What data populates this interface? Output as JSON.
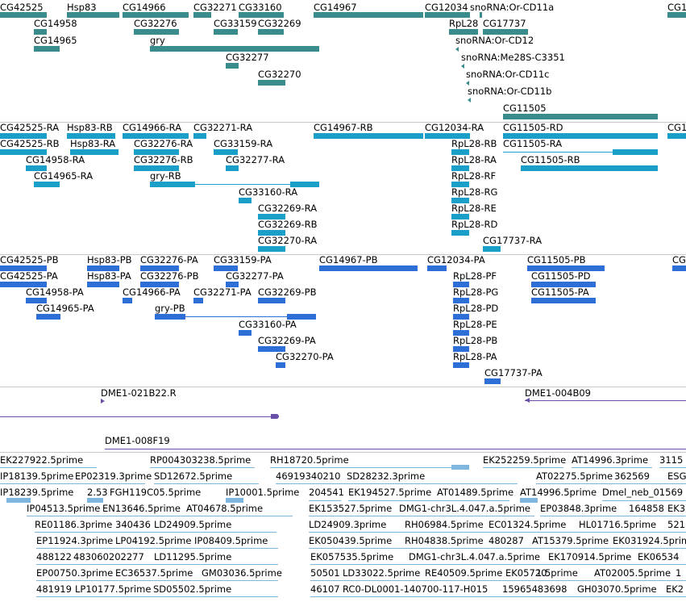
{
  "colors": {
    "gene": "#3a8c8c",
    "transcript": "#1aa0c8",
    "protein": "#2d6fd6",
    "clone": "#6a4fa8",
    "est": "#7fb6e0",
    "separator": "#c8c8c8"
  },
  "tracks": {
    "genes": {
      "labels": [
        "CG42525",
        "Hsp83",
        "CG14966",
        "CG32271",
        "CG33160",
        "CG14967",
        "CG12034",
        "snoRNA:Or-CD11a",
        "CG14958",
        "CG32276",
        "CG33159",
        "CG32269",
        "RpL28",
        "CG17737",
        "CG14965",
        "gry",
        "snoRNA:Or-CD12",
        "CG32277",
        "snoRNA:Me28S-C3351",
        "CG32270",
        "snoRNA:Or-CD11c",
        "snoRNA:Or-CD11b",
        "CG11505"
      ]
    },
    "transcripts": {
      "labels": [
        "CG42525-RA",
        "Hsp83-RB",
        "CG14966-RA",
        "CG32271-RA",
        "CG14967-RB",
        "CG12034-RA",
        "CG11505-RD",
        "CG42525-RB",
        "Hsp83-RA",
        "CG32276-RA",
        "CG33159-RA",
        "RpL28-RB",
        "CG11505-RA",
        "CG14958-RA",
        "CG32276-RB",
        "CG32277-RA",
        "RpL28-RA",
        "CG11505-RB",
        "CG14965-RA",
        "gry-RB",
        "RpL28-RF",
        "CG33160-RA",
        "RpL28-RG",
        "CG32269-RA",
        "RpL28-RE",
        "CG32269-RB",
        "RpL28-RD",
        "CG32270-RA",
        "CG17737-RA"
      ]
    },
    "proteins": {
      "labels": [
        "CG42525-PB",
        "Hsp83-PB",
        "CG32276-PA",
        "CG33159-PA",
        "CG14967-PB",
        "CG12034-PA",
        "CG11505-PB",
        "CG42525-PA",
        "Hsp83-PA",
        "CG32276-PB",
        "CG32277-PA",
        "RpL28-PF",
        "CG11505-PD",
        "CG14958-PA",
        "CG14966-PA",
        "CG32271-PA",
        "CG32269-PB",
        "RpL28-PG",
        "CG11505-PA",
        "CG14965-PA",
        "gry-PB",
        "RpL28-PD",
        "CG33160-PA",
        "RpL28-PE",
        "CG32269-PA",
        "RpL28-PB",
        "CG32270-PA",
        "RpL28-PA",
        "CG17737-PA"
      ]
    },
    "clones": {
      "labels": [
        "DME1-021B22.R",
        "DME1-004B09",
        "DME1-008F19"
      ]
    },
    "ests": {
      "labels": [
        "EK227922.5prime",
        "RP004303238.5prime",
        "RH18720.5prime",
        "EK252259.5prime",
        "AT14996.3prime",
        "3115",
        "IP18139.5prime",
        "EP02319.3prime",
        "SD12672.5prime",
        "46919340210",
        "SD28232.3prime",
        "AT02275.5prime",
        "362569",
        "ESG",
        "IP18239.5prime",
        "2.53",
        "FGH119C05.5prime",
        "IP10001.5prime",
        "204541",
        "EK194527.5prime",
        "AT01489.5prime",
        "AT14996.5prime",
        "Dmel_neb_01569",
        "IP04513.5prime",
        "EN13646.5prime",
        "AT04678.5prime",
        "EK153527.5prime",
        "DMG1-chr3L.4.047.a.5prime",
        "EP03848.3prime",
        "164858",
        "EK3",
        "RE01186.3prime",
        "340436",
        "LD24909.5prime",
        "LD24909.3prime",
        "RH06984.5prime",
        "EC01324.5prime",
        "HL01716.5prime",
        "521",
        "EP11924.3prime",
        "LP04192.5prime",
        "IP08409.5prime",
        "EK050439.5prime",
        "RH04838.5prime",
        "480287",
        "AT15379.5prime",
        "EK031924.5prime",
        "488122",
        "483060202277",
        "LD11295.5prime",
        "EK057535.5prime",
        "DMG1-chr3L.4.047.a.5prime",
        "EK170914.5prime",
        "EK06534",
        "EP00750.3prime",
        "EC36537.5prime",
        "GM03036.5prime",
        "50501",
        "LD33022.5prime",
        "RE40509.5prime",
        "EK05720",
        "1.5prime",
        "AT02005.5prime",
        "1",
        "481919",
        "LP10177.5prime",
        "SD05502.5prime",
        "46107",
        "RC0-DL0001-140700-117-H015",
        "15965483698",
        "GH03070.5prime",
        "EK2"
      ]
    }
  }
}
